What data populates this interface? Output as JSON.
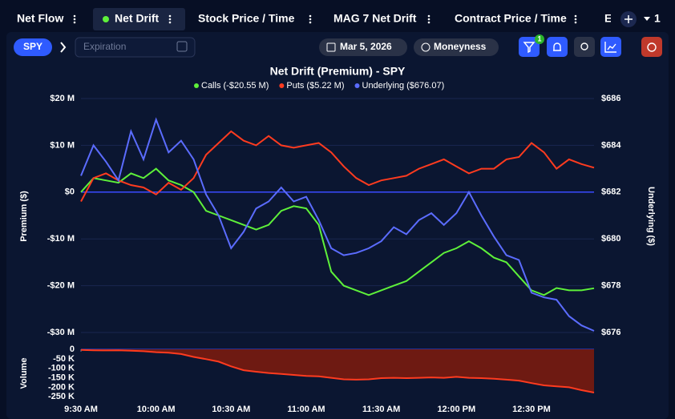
{
  "tabs": [
    "Net Flow",
    "Net Drift",
    "Stock Price / Time",
    "MAG 7 Net Drift",
    "Contract Price / Time",
    "E"
  ],
  "tab_count": "1",
  "toolbar": {
    "symbol": "SPY",
    "expiration_placeholder": "Expiration",
    "date": "Mar 5, 2026",
    "moneyness": "Moneyness",
    "filter_badge": "1"
  },
  "chart_data": [
    {
      "type": "line",
      "title": "Net Drift (Premium) - SPY",
      "ylabel": "Premium ($)",
      "y2label": "Underlying ($)",
      "x": [
        570,
        575,
        580,
        585,
        590,
        595,
        600,
        605,
        610,
        615,
        620,
        625,
        630,
        635,
        640,
        645,
        650,
        655,
        660,
        665,
        670,
        675,
        680,
        685,
        690,
        695,
        700,
        705,
        710,
        715,
        720,
        725,
        730,
        735,
        740,
        745,
        750,
        755,
        760,
        765,
        770,
        775
      ],
      "xlim": [
        570,
        775
      ],
      "ylim": [
        -30,
        20
      ],
      "yticks": [
        {
          "value": 20,
          "label": "$20 M"
        },
        {
          "value": 10,
          "label": "$10 M"
        },
        {
          "value": 0,
          "label": "$0"
        },
        {
          "value": -10,
          "label": "-$10 M"
        },
        {
          "value": -20,
          "label": "-$20 M"
        },
        {
          "value": -30,
          "label": "-$30 M"
        }
      ],
      "y2lim": [
        676,
        686
      ],
      "y2ticks": [
        {
          "value": 686,
          "label": "$686"
        },
        {
          "value": 684,
          "label": "$684"
        },
        {
          "value": 682,
          "label": "$682"
        },
        {
          "value": 680,
          "label": "$680"
        },
        {
          "value": 678,
          "label": "$678"
        },
        {
          "value": 676,
          "label": "$676"
        }
      ],
      "grid": true,
      "series": [
        {
          "name": "Calls (-$20.55 M)",
          "color": "#5ef03a",
          "values": [
            0,
            3,
            2.5,
            2,
            4,
            3,
            5,
            2.5,
            1.5,
            0,
            -4,
            -5,
            -6,
            -7,
            -8,
            -7,
            -4,
            -3,
            -3.5,
            -7,
            -17,
            -20,
            -21,
            -22,
            -21,
            -20,
            -19,
            -17,
            -15,
            -13,
            -12,
            -10.5,
            -12,
            -14,
            -15,
            -18,
            -21,
            -22,
            -20.5,
            -21,
            -21,
            -20.55
          ]
        },
        {
          "name": "Puts ($5.22 M)",
          "color": "#ff3b1f",
          "values": [
            -2,
            3,
            4,
            2.5,
            1.5,
            1,
            -0.5,
            2,
            0.5,
            3,
            8,
            10.5,
            13,
            11,
            10,
            12,
            10,
            9.5,
            10,
            10.5,
            8.5,
            5.5,
            3,
            1.5,
            2.5,
            3,
            3.5,
            5,
            6,
            7,
            5.5,
            4,
            5,
            5,
            7,
            7.5,
            10.5,
            8.5,
            5,
            7,
            6,
            5.22
          ]
        },
        {
          "name": "Underlying ($676.07)",
          "color": "#5b6cff",
          "axis": "y2",
          "values": [
            682.7,
            684.0,
            683.3,
            682.5,
            684.6,
            683.4,
            685.1,
            683.7,
            684.2,
            683.4,
            681.9,
            681.0,
            679.6,
            680.3,
            681.3,
            681.6,
            682.2,
            681.6,
            681.8,
            680.8,
            679.6,
            679.3,
            679.4,
            679.6,
            679.9,
            680.5,
            680.2,
            680.8,
            681.1,
            680.6,
            681.1,
            682.0,
            681.0,
            680.1,
            679.3,
            679.1,
            677.7,
            677.5,
            677.4,
            676.7,
            676.3,
            676.07
          ]
        }
      ]
    },
    {
      "type": "area",
      "ylabel": "Volume",
      "color": "#ff3b1f",
      "x": [
        570,
        575,
        580,
        585,
        590,
        595,
        600,
        605,
        610,
        615,
        620,
        625,
        630,
        635,
        640,
        645,
        650,
        655,
        660,
        665,
        670,
        675,
        680,
        685,
        690,
        695,
        700,
        705,
        710,
        715,
        720,
        725,
        730,
        735,
        740,
        745,
        750,
        755,
        760,
        765,
        770,
        775
      ],
      "values": [
        -3000,
        -5000,
        -6000,
        -5000,
        -7000,
        -10000,
        -15000,
        -18000,
        -25000,
        -40000,
        -52000,
        -65000,
        -90000,
        -110000,
        -118000,
        -125000,
        -130000,
        -135000,
        -140000,
        -142000,
        -150000,
        -158000,
        -160000,
        -158000,
        -152000,
        -150000,
        -152000,
        -150000,
        -148000,
        -150000,
        -145000,
        -150000,
        -152000,
        -155000,
        -160000,
        -165000,
        -178000,
        -190000,
        -195000,
        -200000,
        -215000,
        -228000
      ],
      "xlim": [
        570,
        775
      ],
      "xticks": [
        {
          "value": 570,
          "label": "9:30 AM"
        },
        {
          "value": 600,
          "label": "10:00 AM"
        },
        {
          "value": 630,
          "label": "10:30 AM"
        },
        {
          "value": 660,
          "label": "11:00 AM"
        },
        {
          "value": 690,
          "label": "11:30 AM"
        },
        {
          "value": 720,
          "label": "12:00 PM"
        },
        {
          "value": 750,
          "label": "12:30 PM"
        }
      ],
      "ylim": [
        -270000,
        0
      ],
      "yticks": [
        0,
        {
          "value": -50000,
          "label": "-50 K"
        },
        {
          "value": -100000,
          "label": "-100 K"
        },
        {
          "value": -150000,
          "label": "-150 K"
        },
        {
          "value": -200000,
          "label": "-200 K"
        },
        {
          "value": -250000,
          "label": "-250 K"
        }
      ]
    }
  ]
}
